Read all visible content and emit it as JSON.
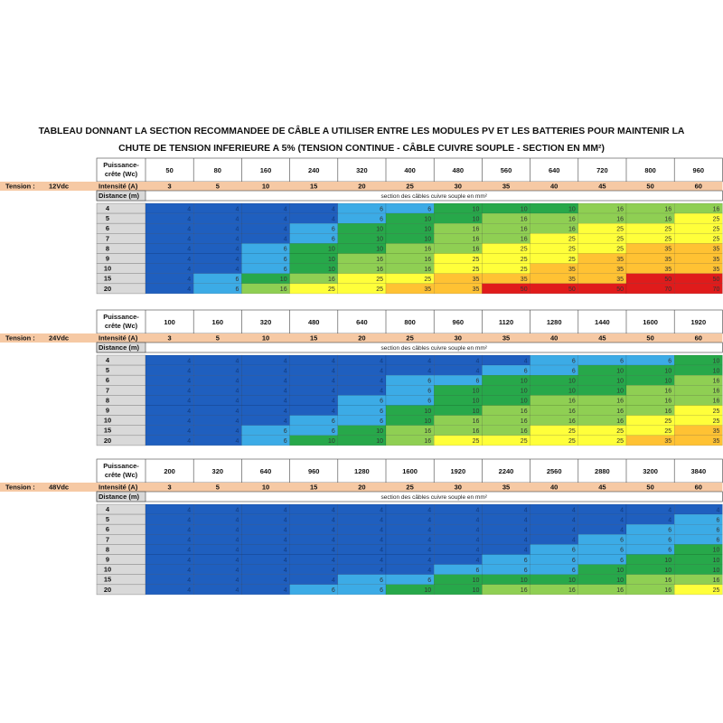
{
  "title": {
    "line1": "TABLEAU DONNANT LA SECTION RECOMMANDEE DE CÂBLE A UTILISER ENTRE LES MODULES PV ET LES BATTERIES POUR MAINTENIR LA",
    "line2": "CHUTE DE TENSION INFERIEURE A 5% (TENSION CONTINUE - CÂBLE CUIVRE SOUPLE - SECTION EN MM²)"
  },
  "labels": {
    "power_line1": "Puissance-",
    "power_line2": "crête (Wc)",
    "tension": "Tension :",
    "intensity": "Intensité (A)",
    "distance": "Distance (m)",
    "section_caption": "section des câbles cuivre souple en mm²"
  },
  "colors": {
    "4": "#1f5fbf",
    "6": "#3cabe6",
    "10": "#27a84a",
    "16": "#8fcf53",
    "25": "#ffff3a",
    "35": "#ffc233",
    "50": "#e01b1b",
    "70": "#e01b1b",
    "tension_band": "#f6c9a4",
    "row_label_bg": "#d9d9d9"
  },
  "tables": [
    {
      "tension": "12Vdc",
      "powers": [
        "50",
        "80",
        "160",
        "240",
        "320",
        "400",
        "480",
        "560",
        "640",
        "720",
        "800",
        "960"
      ],
      "intensities": [
        "3",
        "5",
        "10",
        "15",
        "20",
        "25",
        "30",
        "35",
        "40",
        "45",
        "50",
        "60"
      ],
      "distances": [
        "4",
        "5",
        "6",
        "7",
        "8",
        "9",
        "10",
        "15",
        "20"
      ],
      "values": [
        [
          4,
          4,
          4,
          4,
          6,
          6,
          10,
          10,
          10,
          16,
          16,
          16
        ],
        [
          4,
          4,
          4,
          4,
          6,
          10,
          10,
          16,
          16,
          16,
          16,
          25
        ],
        [
          4,
          4,
          4,
          6,
          10,
          10,
          16,
          16,
          16,
          25,
          25,
          25
        ],
        [
          4,
          4,
          4,
          6,
          10,
          10,
          16,
          16,
          25,
          25,
          25,
          25
        ],
        [
          4,
          4,
          6,
          10,
          10,
          16,
          16,
          25,
          25,
          25,
          35,
          35
        ],
        [
          4,
          4,
          6,
          10,
          16,
          16,
          25,
          25,
          25,
          35,
          35,
          35
        ],
        [
          4,
          4,
          6,
          10,
          16,
          16,
          25,
          25,
          35,
          35,
          35,
          35
        ],
        [
          4,
          6,
          10,
          16,
          25,
          25,
          35,
          35,
          35,
          35,
          50,
          50
        ],
        [
          4,
          6,
          16,
          25,
          25,
          35,
          35,
          50,
          50,
          50,
          70,
          70
        ]
      ]
    },
    {
      "tension": "24Vdc",
      "powers": [
        "100",
        "160",
        "320",
        "480",
        "640",
        "800",
        "960",
        "1120",
        "1280",
        "1440",
        "1600",
        "1920"
      ],
      "intensities": [
        "3",
        "5",
        "10",
        "15",
        "20",
        "25",
        "30",
        "35",
        "40",
        "45",
        "50",
        "60"
      ],
      "distances": [
        "4",
        "5",
        "6",
        "7",
        "8",
        "9",
        "10",
        "15",
        "20"
      ],
      "values": [
        [
          4,
          4,
          4,
          4,
          4,
          4,
          4,
          4,
          6,
          6,
          6,
          10
        ],
        [
          4,
          4,
          4,
          4,
          4,
          4,
          4,
          6,
          6,
          10,
          10,
          10
        ],
        [
          4,
          4,
          4,
          4,
          4,
          6,
          6,
          10,
          10,
          10,
          10,
          16
        ],
        [
          4,
          4,
          4,
          4,
          4,
          6,
          10,
          10,
          10,
          10,
          16,
          16
        ],
        [
          4,
          4,
          4,
          4,
          6,
          6,
          10,
          10,
          16,
          16,
          16,
          16
        ],
        [
          4,
          4,
          4,
          4,
          6,
          10,
          10,
          16,
          16,
          16,
          16,
          25
        ],
        [
          4,
          4,
          4,
          6,
          6,
          10,
          16,
          16,
          16,
          16,
          25,
          25
        ],
        [
          4,
          4,
          6,
          6,
          10,
          16,
          16,
          16,
          25,
          25,
          25,
          35
        ],
        [
          4,
          4,
          6,
          10,
          10,
          16,
          25,
          25,
          25,
          25,
          35,
          35
        ]
      ]
    },
    {
      "tension": "48Vdc",
      "powers": [
        "200",
        "320",
        "640",
        "960",
        "1280",
        "1600",
        "1920",
        "2240",
        "2560",
        "2880",
        "3200",
        "3840"
      ],
      "intensities": [
        "3",
        "5",
        "10",
        "15",
        "20",
        "25",
        "30",
        "35",
        "40",
        "45",
        "50",
        "60"
      ],
      "distances": [
        "4",
        "5",
        "6",
        "7",
        "8",
        "9",
        "10",
        "15",
        "20"
      ],
      "values": [
        [
          4,
          4,
          4,
          4,
          4,
          4,
          4,
          4,
          4,
          4,
          4,
          4
        ],
        [
          4,
          4,
          4,
          4,
          4,
          4,
          4,
          4,
          4,
          4,
          4,
          6
        ],
        [
          4,
          4,
          4,
          4,
          4,
          4,
          4,
          4,
          4,
          4,
          6,
          6
        ],
        [
          4,
          4,
          4,
          4,
          4,
          4,
          4,
          4,
          4,
          6,
          6,
          6
        ],
        [
          4,
          4,
          4,
          4,
          4,
          4,
          4,
          4,
          6,
          6,
          6,
          10
        ],
        [
          4,
          4,
          4,
          4,
          4,
          4,
          4,
          6,
          6,
          6,
          10,
          10
        ],
        [
          4,
          4,
          4,
          4,
          4,
          4,
          6,
          6,
          6,
          10,
          10,
          10
        ],
        [
          4,
          4,
          4,
          4,
          6,
          6,
          10,
          10,
          10,
          10,
          16,
          16
        ],
        [
          4,
          4,
          4,
          6,
          6,
          10,
          10,
          16,
          16,
          16,
          16,
          25
        ]
      ]
    }
  ]
}
